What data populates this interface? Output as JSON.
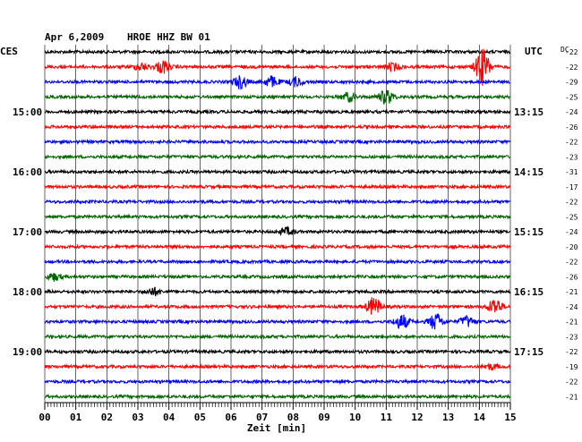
{
  "header": {
    "date": "Apr 6,2009",
    "station": "HROE HHZ BW 01",
    "tz_left": "CES",
    "tz_right": "UTC",
    "dc_label": "DC"
  },
  "chart_data": {
    "type": "line",
    "xlabel": "Zeit [min]",
    "xlim": [
      0,
      15
    ],
    "x_ticks": [
      "00",
      "01",
      "02",
      "03",
      "04",
      "05",
      "06",
      "07",
      "08",
      "09",
      "10",
      "11",
      "12",
      "13",
      "14",
      "15"
    ],
    "left_hour_labels": [
      "15:00",
      "16:00",
      "17:00",
      "18:00",
      "19:00"
    ],
    "right_hour_labels": [
      "13:15",
      "14:15",
      "15:15",
      "16:15",
      "17:15"
    ],
    "trace_colors": [
      "#000000",
      "#ff0000",
      "#0000ff",
      "#006400"
    ],
    "series": [
      {
        "dc": "-22",
        "events": []
      },
      {
        "dc": "-22",
        "events": [
          {
            "t": 3.8,
            "amp": 7
          },
          {
            "t": 3.1,
            "amp": 4
          },
          {
            "t": 11.2,
            "amp": 4
          },
          {
            "t": 14.1,
            "amp": 20
          }
        ]
      },
      {
        "dc": "-29",
        "events": [
          {
            "t": 6.3,
            "amp": 7
          },
          {
            "t": 7.3,
            "amp": 6
          },
          {
            "t": 8.1,
            "amp": 5
          }
        ]
      },
      {
        "dc": "-25",
        "events": [
          {
            "t": 9.8,
            "amp": 5
          },
          {
            "t": 11.0,
            "amp": 8
          }
        ]
      },
      {
        "dc": "-24",
        "events": []
      },
      {
        "dc": "-26",
        "events": []
      },
      {
        "dc": "-22",
        "events": []
      },
      {
        "dc": "-23",
        "events": []
      },
      {
        "dc": "-31",
        "events": []
      },
      {
        "dc": "-17",
        "events": []
      },
      {
        "dc": "-22",
        "events": []
      },
      {
        "dc": "-25",
        "events": []
      },
      {
        "dc": "-24",
        "events": [
          {
            "t": 7.8,
            "amp": 4
          }
        ]
      },
      {
        "dc": "-20",
        "events": []
      },
      {
        "dc": "-22",
        "events": []
      },
      {
        "dc": "-26",
        "events": [
          {
            "t": 0.3,
            "amp": 4
          }
        ]
      },
      {
        "dc": "-21",
        "events": [
          {
            "t": 3.5,
            "amp": 4
          }
        ]
      },
      {
        "dc": "-24",
        "events": [
          {
            "t": 10.6,
            "amp": 10
          },
          {
            "t": 14.5,
            "amp": 9
          }
        ]
      },
      {
        "dc": "-21",
        "events": [
          {
            "t": 11.5,
            "amp": 8
          },
          {
            "t": 12.6,
            "amp": 9
          },
          {
            "t": 13.6,
            "amp": 6
          }
        ]
      },
      {
        "dc": "-23",
        "events": []
      },
      {
        "dc": "-22",
        "events": []
      },
      {
        "dc": "-19",
        "events": [
          {
            "t": 14.4,
            "amp": 3
          }
        ]
      },
      {
        "dc": "-22",
        "events": []
      },
      {
        "dc": "-21",
        "events": []
      }
    ]
  }
}
